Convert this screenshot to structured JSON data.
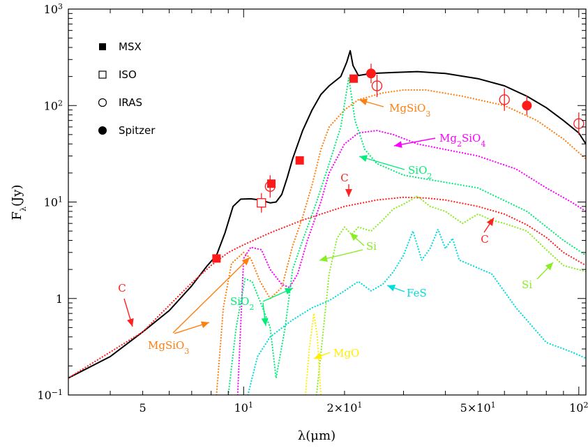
{
  "chart_data": {
    "type": "line",
    "title": "",
    "xlabel": "λ(μm)",
    "ylabel": "Fλ(Jy)",
    "xscale": "log",
    "yscale": "log",
    "xlim": [
      3.0,
      105.0
    ],
    "ylim": [
      0.1,
      1000.0
    ],
    "grid": false,
    "legend_position": "top-left",
    "x_ticks": [
      {
        "value": 5,
        "label": "5"
      },
      {
        "value": 10,
        "label": "10",
        "base": "10",
        "exp": "1"
      },
      {
        "value": 20,
        "label": "2×10",
        "base": "2×10",
        "exp": "1"
      },
      {
        "value": 50,
        "label": "5×10",
        "base": "5×10",
        "exp": "1"
      },
      {
        "value": 100,
        "label": "10",
        "base": "10",
        "exp": "2"
      }
    ],
    "y_ticks": [
      {
        "value": 0.1,
        "label": "10",
        "base": "10",
        "exp": "−1"
      },
      {
        "value": 1,
        "label": "1"
      },
      {
        "value": 10,
        "label": "10",
        "base": "10",
        "exp": "1"
      },
      {
        "value": 100,
        "label": "10",
        "base": "10",
        "exp": "2"
      },
      {
        "value": 1000,
        "label": "10",
        "base": "10",
        "exp": "3"
      }
    ],
    "legend": [
      {
        "label": "MSX",
        "marker": "filled-square"
      },
      {
        "label": "ISO",
        "marker": "open-square"
      },
      {
        "label": "IRAS",
        "marker": "open-circle"
      },
      {
        "label": "Spitzer",
        "marker": "filled-circle"
      }
    ],
    "observations": [
      {
        "instrument": "MSX",
        "marker": "filled-square",
        "points": [
          [
            8.3,
            2.6
          ],
          [
            12.1,
            15.5
          ],
          [
            14.7,
            27.0
          ],
          [
            21.3,
            190.0
          ]
        ]
      },
      {
        "instrument": "ISO",
        "marker": "open-square",
        "points": [
          [
            11.3,
            9.8
          ]
        ]
      },
      {
        "instrument": "IRAS",
        "marker": "open-circle",
        "points": [
          [
            12.0,
            14.5
          ],
          [
            25.0,
            160.0
          ],
          [
            60.0,
            115.0
          ],
          [
            100.0,
            65.0
          ]
        ]
      },
      {
        "instrument": "Spitzer",
        "marker": "filled-circle",
        "points": [
          [
            24.0,
            215.0
          ],
          [
            70.0,
            100.0
          ]
        ]
      }
    ],
    "series": [
      {
        "label": "",
        "color": "#000000",
        "style": "solid",
        "points": [
          [
            3,
            0.15
          ],
          [
            4,
            0.25
          ],
          [
            5,
            0.45
          ],
          [
            6,
            0.75
          ],
          [
            7,
            1.35
          ],
          [
            7.8,
            2.2
          ],
          [
            8.3,
            2.8
          ],
          [
            8.8,
            4.8
          ],
          [
            9.3,
            9.0
          ],
          [
            9.8,
            10.7
          ],
          [
            10.5,
            10.8
          ],
          [
            11.2,
            10.5
          ],
          [
            12,
            9.8
          ],
          [
            12.5,
            10.0
          ],
          [
            13,
            12
          ],
          [
            13.5,
            18
          ],
          [
            14,
            28
          ],
          [
            15,
            55
          ],
          [
            16,
            90
          ],
          [
            17,
            130
          ],
          [
            18,
            160
          ],
          [
            19.5,
            200
          ],
          [
            20.3,
            280
          ],
          [
            20.8,
            370
          ],
          [
            21.2,
            260
          ],
          [
            22,
            205
          ],
          [
            24,
            215
          ],
          [
            28,
            220
          ],
          [
            33,
            225
          ],
          [
            40,
            215
          ],
          [
            50,
            190
          ],
          [
            60,
            160
          ],
          [
            70,
            125
          ],
          [
            80,
            95
          ],
          [
            90,
            70
          ],
          [
            100,
            52
          ],
          [
            105,
            40
          ]
        ]
      },
      {
        "label": "MgSiO3",
        "color": "#ff7f0e",
        "style": "dotted",
        "points": [
          [
            8.3,
            0.1
          ],
          [
            8.7,
            0.8
          ],
          [
            9.2,
            2.3
          ],
          [
            10.0,
            3.0
          ],
          [
            10.5,
            2.6
          ],
          [
            11.2,
            1.5
          ],
          [
            12,
            1.0
          ],
          [
            13,
            1.3
          ],
          [
            14,
            3.5
          ],
          [
            15,
            7
          ],
          [
            16,
            15
          ],
          [
            17,
            35
          ],
          [
            18,
            60
          ],
          [
            20,
            90
          ],
          [
            22,
            115
          ],
          [
            26,
            135
          ],
          [
            30,
            145
          ],
          [
            35,
            145
          ],
          [
            45,
            125
          ],
          [
            60,
            100
          ],
          [
            75,
            70
          ],
          [
            90,
            45
          ],
          [
            105,
            28
          ]
        ]
      },
      {
        "label": "Mg2SiO4",
        "color": "#ff00ff",
        "style": "dotted",
        "points": [
          [
            9.6,
            0.1
          ],
          [
            10.0,
            2.6
          ],
          [
            10.5,
            3.4
          ],
          [
            11.3,
            3.2
          ],
          [
            12,
            2.0
          ],
          [
            13,
            1.4
          ],
          [
            13.7,
            1.3
          ],
          [
            14.5,
            1.8
          ],
          [
            15.5,
            4
          ],
          [
            17,
            10
          ],
          [
            18,
            20
          ],
          [
            20,
            40
          ],
          [
            22,
            52
          ],
          [
            25,
            55
          ],
          [
            28,
            50
          ],
          [
            33,
            40
          ],
          [
            40,
            35
          ],
          [
            50,
            30
          ],
          [
            65,
            22
          ],
          [
            80,
            14
          ],
          [
            95,
            10
          ],
          [
            105,
            8
          ]
        ]
      },
      {
        "label": "SiO2",
        "color": "#00ee77",
        "style": "dotted",
        "points": [
          [
            9.0,
            0.1
          ],
          [
            9.5,
            0.5
          ],
          [
            10.1,
            1.6
          ],
          [
            10.6,
            1.5
          ],
          [
            11.4,
            0.8
          ],
          [
            12.0,
            0.5
          ],
          [
            12.5,
            0.15
          ],
          [
            13.3,
            0.5
          ],
          [
            14.0,
            2.0
          ],
          [
            15.0,
            4
          ],
          [
            16.5,
            10
          ],
          [
            18,
            25
          ],
          [
            19.5,
            60
          ],
          [
            20.6,
            195
          ],
          [
            21.5,
            70
          ],
          [
            23,
            35
          ],
          [
            25,
            25
          ],
          [
            30,
            19
          ],
          [
            40,
            16
          ],
          [
            50,
            14
          ],
          [
            70,
            8
          ],
          [
            90,
            4
          ],
          [
            105,
            2.8
          ]
        ]
      },
      {
        "label": "C",
        "color": "#ff2222",
        "style": "dotted",
        "points": [
          [
            3,
            0.15
          ],
          [
            5,
            0.45
          ],
          [
            7,
            1.45
          ],
          [
            8,
            2.2
          ],
          [
            9,
            3.0
          ],
          [
            10,
            3.6
          ],
          [
            12,
            4.8
          ],
          [
            15,
            6.5
          ],
          [
            20,
            9
          ],
          [
            25,
            10.5
          ],
          [
            30,
            11.2
          ],
          [
            35,
            11.0
          ],
          [
            40,
            10.5
          ],
          [
            50,
            9.0
          ],
          [
            60,
            7.5
          ],
          [
            70,
            5.8
          ],
          [
            80,
            4.3
          ],
          [
            90,
            3.0
          ],
          [
            105,
            2.2
          ]
        ]
      },
      {
        "label": "Si",
        "color": "#88ee22",
        "style": "dotted",
        "points": [
          [
            16.5,
            0.1
          ],
          [
            17.2,
            0.4
          ],
          [
            18,
            1.8
          ],
          [
            19,
            4.2
          ],
          [
            20,
            5.5
          ],
          [
            21,
            4.6
          ],
          [
            22,
            5.5
          ],
          [
            24,
            5.0
          ],
          [
            26,
            6.5
          ],
          [
            28,
            8.5
          ],
          [
            30,
            9.5
          ],
          [
            33,
            11.5
          ],
          [
            36,
            9.0
          ],
          [
            40,
            8.0
          ],
          [
            45,
            6.0
          ],
          [
            50,
            7.5
          ],
          [
            55,
            6.5
          ],
          [
            60,
            6.0
          ],
          [
            70,
            5.0
          ],
          [
            80,
            3.2
          ],
          [
            90,
            2.2
          ],
          [
            105,
            1.9
          ]
        ]
      },
      {
        "label": "FeS",
        "color": "#00dddd",
        "style": "dotted",
        "points": [
          [
            10.3,
            0.1
          ],
          [
            11,
            0.25
          ],
          [
            12,
            0.4
          ],
          [
            14,
            0.6
          ],
          [
            16,
            0.8
          ],
          [
            18,
            0.95
          ],
          [
            20,
            1.2
          ],
          [
            22,
            1.5
          ],
          [
            24,
            1.2
          ],
          [
            26,
            1.4
          ],
          [
            28,
            1.9
          ],
          [
            30,
            2.8
          ],
          [
            32,
            5.0
          ],
          [
            34,
            2.5
          ],
          [
            36,
            3.3
          ],
          [
            38,
            5.2
          ],
          [
            40,
            3.3
          ],
          [
            42,
            4.2
          ],
          [
            44,
            2.5
          ],
          [
            48,
            2.2
          ],
          [
            55,
            1.8
          ],
          [
            65,
            0.8
          ],
          [
            80,
            0.35
          ],
          [
            95,
            0.28
          ],
          [
            105,
            0.24
          ]
        ]
      },
      {
        "label": "MgO",
        "color": "#ffee00",
        "style": "dotted",
        "points": [
          [
            15.3,
            0.1
          ],
          [
            15.7,
            0.3
          ],
          [
            16.2,
            0.7
          ],
          [
            16.6,
            0.4
          ],
          [
            17.0,
            0.1
          ]
        ]
      }
    ],
    "annotations": [
      {
        "text": "MgSiO3",
        "display": "MgSiO",
        "sub": "3",
        "color": "#ff7f0e"
      },
      {
        "text": "Mg2SiO4",
        "display": "Mg",
        "sub": "2",
        "display2": "SiO",
        "sub2": "4",
        "color": "#ff00ff"
      },
      {
        "text": "SiO2",
        "display": "SiO",
        "sub": "2",
        "color": "#00ee77"
      },
      {
        "text": "C",
        "display": "C",
        "color": "#ff2222"
      },
      {
        "text": "C",
        "display": "C",
        "color": "#ff2222"
      },
      {
        "text": "Si",
        "display": "Si",
        "color": "#88ee22"
      },
      {
        "text": "FeS",
        "display": "FeS",
        "color": "#00dddd"
      },
      {
        "text": "C",
        "display": "C",
        "color": "#ff2222"
      },
      {
        "text": "SiO2",
        "display": "SiO",
        "sub": "2",
        "color": "#00ee77"
      },
      {
        "text": "MgSiO3",
        "display": "MgSiO",
        "sub": "3",
        "color": "#ff7f0e"
      },
      {
        "text": "MgO",
        "display": "MgO",
        "color": "#ffee00"
      },
      {
        "text": "Si",
        "display": "Si",
        "color": "#88ee22"
      }
    ]
  }
}
